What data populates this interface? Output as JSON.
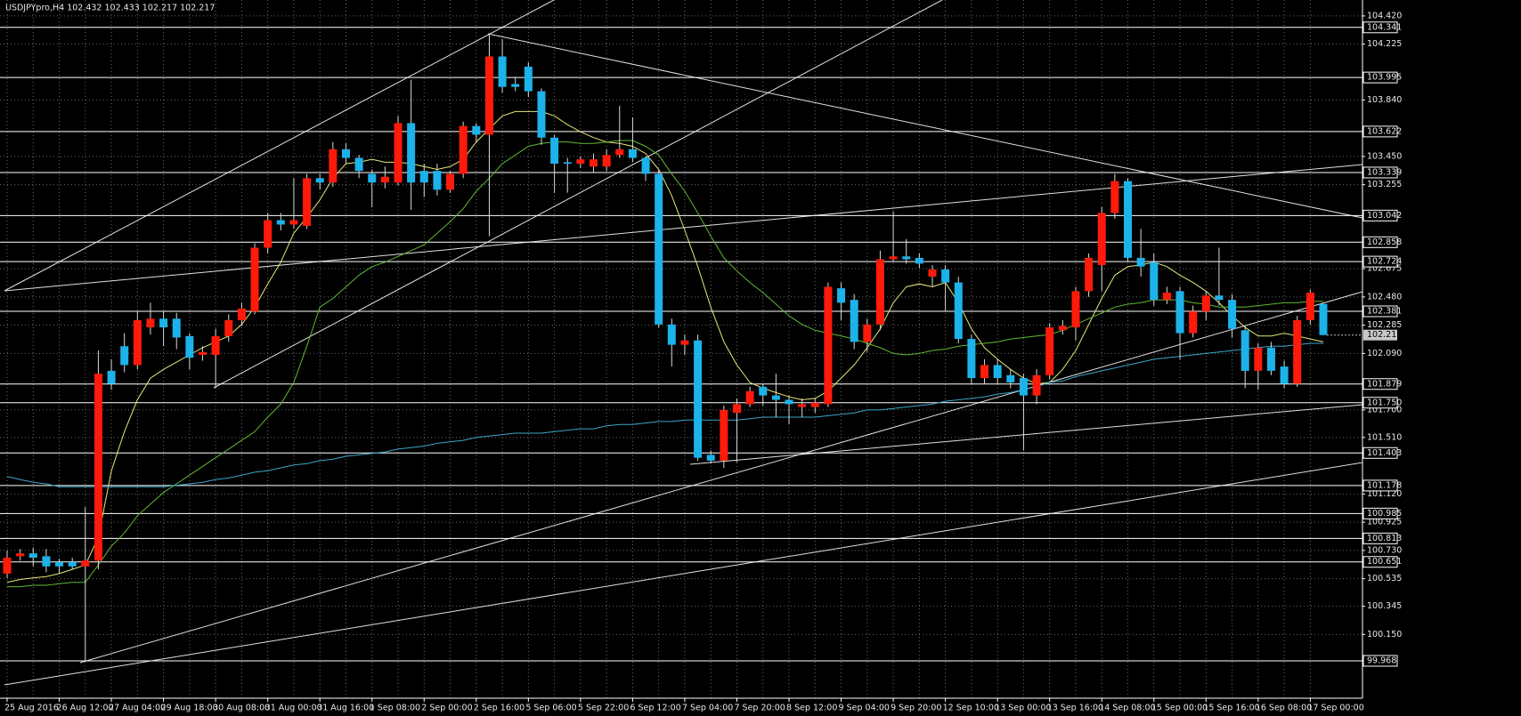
{
  "chart_data": {
    "type": "candlestick",
    "title": "USDJPYpro,H4  102.432 102.433 102.217 102.217",
    "categories": [
      "25 Aug 2016",
      null,
      null,
      null,
      "26 Aug 12:00",
      null,
      null,
      null,
      "27 Aug 04:00",
      null,
      null,
      null,
      "29 Aug 18:00",
      null,
      null,
      null,
      "30 Aug 08:00",
      null,
      null,
      null,
      "31 Aug 00:00",
      null,
      null,
      null,
      "31 Aug 16:00",
      null,
      null,
      null,
      "1 Sep 08:00",
      null,
      null,
      null,
      "2 Sep 00:00",
      null,
      null,
      null,
      "2 Sep 16:00",
      null,
      null,
      null,
      "5 Sep 06:00",
      null,
      null,
      null,
      "5 Sep 22:00",
      null,
      null,
      null,
      "6 Sep 12:00",
      null,
      null,
      null,
      "7 Sep 04:00",
      null,
      null,
      null,
      "7 Sep 20:00",
      null,
      null,
      null,
      "8 Sep 12:00",
      null,
      null,
      null,
      "9 Sep 04:00",
      null,
      null,
      null,
      "9 Sep 20:00",
      null,
      null,
      null,
      "12 Sep 10:00",
      null,
      null,
      null,
      "13 Sep 00:00",
      null,
      null,
      null,
      "13 Sep 16:00",
      null,
      null,
      null,
      "14 Sep 08:00",
      null,
      null,
      null,
      "15 Sep 00:00",
      null,
      null,
      null,
      "15 Sep 16:00",
      null,
      null,
      null,
      "16 Sep 08:00",
      null,
      null,
      null,
      "17 Sep 00:00",
      null
    ],
    "open": [
      100.57,
      100.69,
      100.71,
      100.69,
      100.65,
      100.65,
      100.62,
      100.66,
      101.97,
      102.14,
      102.01,
      102.27,
      102.33,
      102.33,
      102.21,
      102.08,
      102.08,
      102.21,
      102.32,
      102.38,
      102.82,
      103.01,
      102.98,
      102.97,
      103.3,
      103.27,
      103.5,
      103.44,
      103.33,
      103.27,
      103.27,
      103.68,
      103.35,
      103.35,
      103.22,
      103.33,
      103.66,
      103.6,
      104.14,
      103.95,
      104.07,
      103.9,
      103.58,
      103.41,
      103.4,
      103.38,
      103.38,
      103.46,
      103.5,
      103.44,
      103.33,
      102.29,
      102.15,
      102.18,
      101.39,
      101.35,
      101.68,
      101.74,
      101.86,
      101.8,
      101.77,
      101.72,
      101.72,
      101.74,
      102.54,
      102.46,
      102.17,
      102.29,
      102.74,
      102.76,
      102.75,
      102.62,
      102.67,
      102.58,
      102.19,
      101.92,
      102.01,
      101.94,
      101.92,
      101.8,
      101.94,
      102.25,
      102.27,
      102.52,
      102.7,
      103.06,
      103.28,
      102.75,
      102.72,
      102.46,
      102.52,
      102.23,
      102.38,
      102.49,
      102.46,
      102.25,
      101.97,
      102.13,
      102.0,
      101.88,
      102.32,
      102.432
    ],
    "high": [
      100.73,
      100.74,
      100.75,
      100.74,
      100.67,
      100.68,
      101.03,
      102.11,
      102.05,
      102.23,
      102.38,
      102.44,
      102.38,
      102.37,
      102.23,
      102.14,
      102.26,
      102.36,
      102.44,
      102.85,
      103.06,
      103.06,
      103.3,
      103.33,
      103.33,
      103.55,
      103.54,
      103.46,
      103.36,
      103.38,
      103.73,
      103.98,
      103.4,
      103.4,
      103.35,
      103.69,
      103.68,
      104.29,
      104.26,
      104.0,
      104.1,
      103.92,
      103.6,
      103.44,
      103.45,
      103.47,
      103.5,
      103.8,
      103.72,
      103.45,
      103.36,
      102.33,
      102.22,
      102.22,
      101.42,
      101.73,
      101.78,
      101.86,
      101.88,
      101.95,
      101.8,
      101.78,
      101.78,
      102.58,
      102.58,
      102.5,
      102.33,
      102.8,
      103.07,
      102.88,
      102.78,
      102.7,
      102.7,
      102.62,
      102.22,
      102.05,
      102.05,
      101.98,
      101.95,
      101.98,
      102.3,
      102.32,
      102.55,
      102.78,
      103.1,
      103.33,
      103.3,
      102.95,
      102.78,
      102.55,
      102.55,
      102.42,
      102.52,
      102.82,
      102.5,
      102.28,
      102.16,
      102.17,
      102.04,
      102.35,
      102.53,
      102.433
    ],
    "low": [
      100.54,
      100.66,
      100.62,
      100.58,
      100.57,
      100.6,
      99.96,
      100.6,
      101.84,
      101.96,
      101.98,
      102.22,
      102.14,
      102.12,
      101.98,
      102.04,
      101.85,
      102.17,
      102.28,
      102.36,
      102.78,
      102.94,
      102.95,
      102.95,
      103.22,
      103.24,
      103.4,
      103.3,
      103.1,
      103.23,
      103.25,
      103.08,
      103.17,
      103.18,
      103.2,
      103.3,
      103.55,
      102.9,
      103.89,
      103.9,
      103.86,
      103.53,
      103.2,
      103.2,
      103.37,
      103.34,
      103.35,
      103.44,
      103.41,
      103.28,
      102.27,
      102.0,
      102.08,
      101.35,
      101.33,
      101.3,
      101.34,
      101.72,
      101.73,
      101.65,
      101.6,
      101.65,
      101.68,
      101.72,
      102.32,
      102.12,
      102.1,
      102.25,
      102.72,
      102.71,
      102.68,
      102.55,
      102.38,
      102.16,
      101.88,
      101.88,
      101.88,
      101.85,
      101.42,
      101.74,
      101.91,
      102.22,
      102.18,
      102.48,
      102.52,
      103.02,
      102.72,
      102.62,
      102.42,
      102.43,
      102.05,
      102.2,
      102.32,
      102.42,
      102.2,
      101.85,
      101.84,
      101.94,
      101.85,
      101.86,
      102.29,
      102.217
    ],
    "close": [
      100.68,
      100.71,
      100.68,
      100.62,
      100.62,
      100.62,
      100.66,
      101.95,
      101.88,
      102.01,
      102.32,
      102.33,
      102.27,
      102.2,
      102.06,
      102.1,
      102.21,
      102.32,
      102.4,
      102.82,
      103.01,
      102.98,
      103.01,
      103.3,
      103.27,
      103.5,
      103.44,
      103.35,
      103.27,
      103.31,
      103.68,
      103.27,
      103.27,
      103.22,
      103.33,
      103.66,
      103.6,
      104.14,
      103.93,
      103.93,
      103.9,
      103.58,
      103.4,
      103.4,
      103.43,
      103.43,
      103.46,
      103.5,
      103.44,
      103.33,
      102.29,
      102.15,
      102.18,
      101.37,
      101.35,
      101.7,
      101.74,
      101.83,
      101.8,
      101.77,
      101.74,
      101.74,
      101.75,
      102.55,
      102.44,
      102.17,
      102.29,
      102.74,
      102.76,
      102.74,
      102.71,
      102.67,
      102.58,
      102.19,
      101.92,
      102.01,
      101.92,
      101.89,
      101.8,
      101.94,
      102.27,
      102.28,
      102.52,
      102.75,
      103.06,
      103.28,
      102.75,
      102.69,
      102.46,
      102.51,
      102.23,
      102.38,
      102.49,
      102.46,
      102.26,
      101.97,
      102.13,
      101.97,
      101.88,
      102.32,
      102.51,
      102.217
    ],
    "up_color": "#ff1a0a",
    "down_color": "#1cb2ea",
    "wick_color": "#d8d8d8",
    "moving_averages": [
      {
        "color": "#e6e67a",
        "values": [
          100.51,
          100.53,
          100.54,
          100.55,
          100.57,
          100.6,
          100.63,
          100.82,
          101.28,
          101.55,
          101.77,
          101.92,
          101.98,
          102.03,
          102.08,
          102.13,
          102.17,
          102.21,
          102.29,
          102.41,
          102.57,
          102.72,
          102.92,
          103.03,
          103.15,
          103.3,
          103.4,
          103.41,
          103.43,
          103.41,
          103.41,
          103.4,
          103.38,
          103.36,
          103.38,
          103.43,
          103.55,
          103.64,
          103.73,
          103.76,
          103.76,
          103.76,
          103.73,
          103.67,
          103.62,
          103.58,
          103.55,
          103.54,
          103.52,
          103.47,
          103.36,
          103.18,
          102.94,
          102.69,
          102.41,
          102.17,
          102.01,
          101.89,
          101.85,
          101.82,
          101.79,
          101.77,
          101.78,
          101.83,
          101.92,
          102.01,
          102.13,
          102.26,
          102.44,
          102.55,
          102.57,
          102.55,
          102.58,
          102.44,
          102.26,
          102.13,
          102.05,
          101.98,
          101.92,
          101.88,
          101.89,
          101.98,
          102.11,
          102.29,
          102.47,
          102.63,
          102.69,
          102.7,
          102.72,
          102.69,
          102.63,
          102.58,
          102.52,
          102.44,
          102.35,
          102.27,
          102.21,
          102.21,
          102.23,
          102.21,
          102.19,
          102.17
        ]
      },
      {
        "color": "#5fb832",
        "values": [
          100.48,
          100.48,
          100.49,
          100.49,
          100.5,
          100.51,
          100.51,
          100.63,
          100.76,
          100.85,
          100.97,
          101.05,
          101.13,
          101.19,
          101.25,
          101.31,
          101.37,
          101.43,
          101.49,
          101.55,
          101.65,
          101.74,
          101.89,
          102.14,
          102.41,
          102.47,
          102.55,
          102.63,
          102.69,
          102.72,
          102.76,
          102.8,
          102.84,
          102.92,
          103.0,
          103.09,
          103.21,
          103.3,
          103.4,
          103.46,
          103.52,
          103.54,
          103.55,
          103.55,
          103.54,
          103.54,
          103.55,
          103.56,
          103.56,
          103.52,
          103.46,
          103.33,
          103.21,
          103.06,
          102.9,
          102.75,
          102.66,
          102.58,
          102.51,
          102.43,
          102.35,
          102.29,
          102.25,
          102.23,
          102.21,
          102.19,
          102.16,
          102.13,
          102.09,
          102.08,
          102.09,
          102.11,
          102.12,
          102.14,
          102.15,
          102.16,
          102.17,
          102.19,
          102.2,
          102.21,
          102.22,
          102.25,
          102.29,
          102.33,
          102.37,
          102.41,
          102.43,
          102.44,
          102.46,
          102.46,
          102.46,
          102.44,
          102.43,
          102.41,
          102.41,
          102.41,
          102.42,
          102.43,
          102.44,
          102.44,
          102.45,
          102.45
        ]
      },
      {
        "color": "#3aa6c8",
        "values": [
          101.24,
          101.22,
          101.2,
          101.19,
          101.17,
          101.17,
          101.17,
          101.17,
          101.17,
          101.17,
          101.17,
          101.17,
          101.17,
          101.18,
          101.19,
          101.2,
          101.22,
          101.23,
          101.25,
          101.27,
          101.28,
          101.3,
          101.32,
          101.33,
          101.35,
          101.36,
          101.38,
          101.39,
          101.4,
          101.41,
          101.43,
          101.44,
          101.45,
          101.47,
          101.48,
          101.49,
          101.51,
          101.52,
          101.53,
          101.54,
          101.54,
          101.54,
          101.55,
          101.56,
          101.57,
          101.57,
          101.59,
          101.6,
          101.6,
          101.61,
          101.62,
          101.62,
          101.63,
          101.63,
          101.63,
          101.63,
          101.63,
          101.64,
          101.65,
          101.65,
          101.65,
          101.65,
          101.65,
          101.66,
          101.67,
          101.68,
          101.7,
          101.7,
          101.71,
          101.72,
          101.73,
          101.74,
          101.76,
          101.77,
          101.78,
          101.79,
          101.81,
          101.82,
          101.84,
          101.86,
          101.89,
          101.9,
          101.93,
          101.95,
          101.97,
          101.99,
          102.01,
          102.03,
          102.05,
          102.06,
          102.07,
          102.08,
          102.09,
          102.1,
          102.11,
          102.12,
          102.13,
          102.14,
          102.14,
          102.15,
          102.16,
          102.16
        ]
      }
    ],
    "ylim": [
      99.71,
      104.53
    ],
    "yticks": [
      {
        "value": 104.42,
        "label": "104.420"
      },
      104.225,
      {
        "value": 103.84,
        "label": "103.840"
      },
      {
        "value": 103.45,
        "label": "103.450"
      },
      103.255,
      102.675,
      {
        "value": 102.48,
        "label": "102.480"
      },
      102.285,
      {
        "value": 102.09,
        "label": "102.090"
      },
      {
        "value": 101.7,
        "label": "101.700"
      },
      {
        "value": 101.51,
        "label": "101.510"
      },
      {
        "value": 101.12,
        "label": "101.120"
      },
      100.925,
      {
        "value": 100.73,
        "label": "100.730"
      },
      100.535,
      100.345,
      {
        "value": 100.15,
        "label": "100.150"
      }
    ],
    "hlines": [
      104.341,
      103.995,
      103.622,
      103.339,
      103.042,
      102.858,
      102.724,
      102.381,
      101.879,
      {
        "value": 101.75,
        "label": "101.750"
      },
      101.403,
      101.178,
      100.985,
      100.813,
      100.651,
      99.968
    ],
    "current_price": 102.217,
    "grid": true
  }
}
